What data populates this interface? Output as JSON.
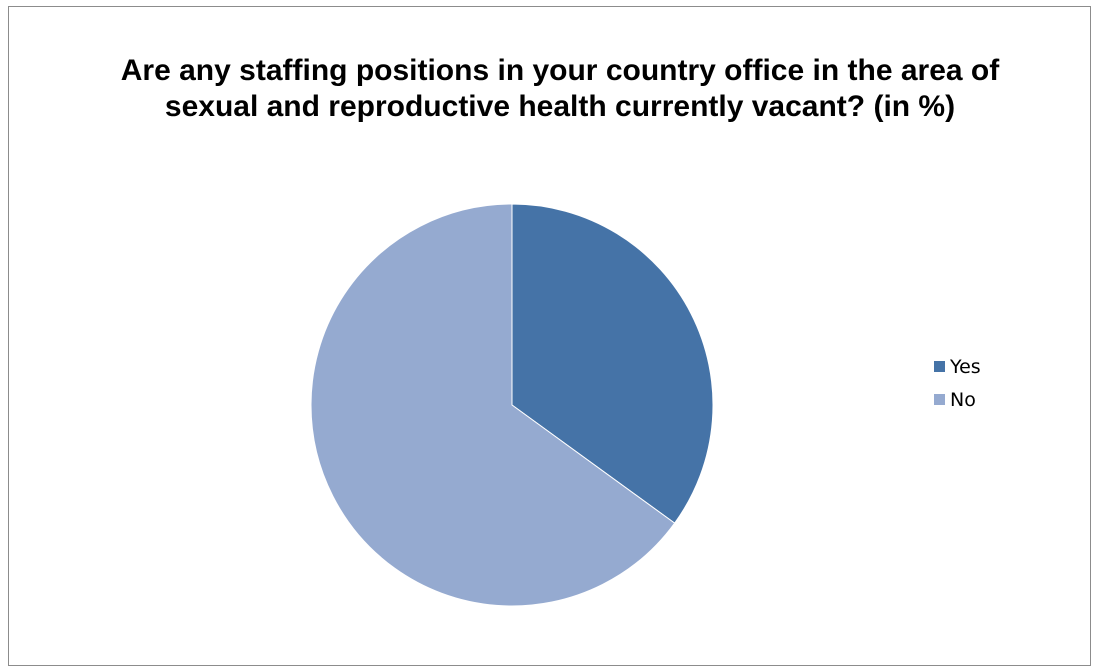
{
  "chart_data": {
    "type": "pie",
    "title": "Are any staffing positions in your country office in the area of sexual and reproductive health currently vacant? (in %)",
    "categories": [
      "Yes",
      "No"
    ],
    "values": [
      35,
      65
    ],
    "colors": [
      "#4573a7",
      "#95aad0"
    ],
    "legend_position": "right",
    "start_angle": "12 o'clock, clockwise"
  }
}
